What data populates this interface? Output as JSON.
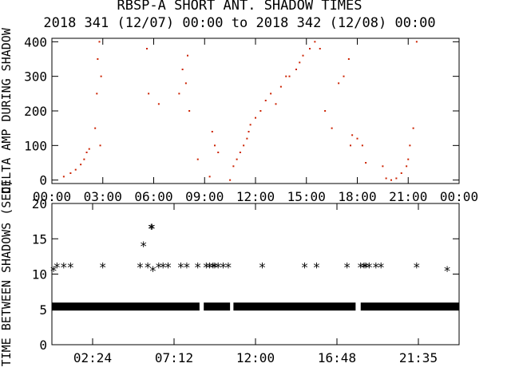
{
  "title": "RBSP-A SHORT ANT. SHADOW TIMES",
  "subtitle": "2018 341 (12/07) 00:00 to 2018 342 (12/08) 00:00",
  "colors": {
    "points": "#cc2200",
    "axes": "#000000",
    "stars": "#000000"
  },
  "chart_data": [
    {
      "type": "scatter",
      "ylabel": "DELTA AMP DURING SHADOW",
      "xlabel": "",
      "xlim": [
        0,
        24
      ],
      "ylim": [
        -10,
        410
      ],
      "yticks": [
        "0",
        "100",
        "200",
        "300",
        "400"
      ],
      "xticks": [
        "00:00",
        "03:00",
        "06:00",
        "09:00",
        "12:00",
        "15:00",
        "18:00",
        "21:00",
        "00:00"
      ],
      "marker": "dot",
      "series": [
        {
          "x": [
            0.7,
            1.1,
            1.4,
            1.7,
            1.9,
            2.05,
            2.2,
            2.55,
            2.65,
            2.7,
            2.8,
            2.85,
            2.9,
            5.6,
            5.7,
            6.3,
            7.5,
            7.7,
            7.9,
            8.0,
            8.1,
            8.6,
            9.3,
            9.45,
            9.6,
            9.8,
            10.5,
            10.7,
            10.9,
            11.1,
            11.3,
            11.5,
            11.6,
            11.7,
            12.0,
            12.3,
            12.6,
            12.9,
            13.2,
            13.5,
            13.8,
            14.0,
            14.4,
            14.6,
            14.8,
            15.2,
            15.5,
            15.8,
            16.1,
            16.5,
            16.9,
            17.2,
            17.5,
            17.6,
            17.7,
            18.0,
            18.3,
            18.5,
            19.5,
            19.7,
            20.0,
            20.3,
            20.6,
            20.9,
            21.0,
            21.1,
            21.3,
            21.5
          ],
          "y": [
            10,
            20,
            30,
            45,
            60,
            80,
            90,
            150,
            250,
            350,
            400,
            100,
            300,
            380,
            250,
            220,
            250,
            320,
            280,
            360,
            200,
            60,
            10,
            140,
            100,
            80,
            0,
            40,
            60,
            80,
            100,
            120,
            140,
            160,
            180,
            200,
            230,
            250,
            220,
            270,
            300,
            300,
            320,
            340,
            360,
            380,
            400,
            380,
            200,
            150,
            280,
            300,
            350,
            100,
            130,
            120,
            100,
            50,
            40,
            5,
            0,
            5,
            20,
            40,
            60,
            100,
            150,
            400
          ]
        }
      ]
    },
    {
      "type": "scatter",
      "ylabel": "TIME BETWEEN SHADOWS (SEC)",
      "xlabel": "",
      "xlim": [
        0,
        24
      ],
      "ylim": [
        0,
        20
      ],
      "yticks": [
        "0",
        "5",
        "10",
        "15",
        "20"
      ],
      "xticks": [
        "02:24",
        "07:12",
        "12:00",
        "16:48",
        "21:35"
      ],
      "marker": "asterisk",
      "baseline_band": {
        "value": 5.4,
        "gaps": [
          [
            8.7,
            8.95
          ],
          [
            10.5,
            10.7
          ],
          [
            17.9,
            18.2
          ]
        ]
      },
      "series": [
        {
          "x": [
            0.1,
            0.3,
            0.7,
            1.1,
            3.0,
            5.2,
            5.65,
            5.95,
            6.3,
            6.55,
            6.85,
            7.6,
            7.95,
            8.6,
            9.1,
            9.3,
            9.5,
            9.6,
            9.8,
            10.1,
            10.4,
            12.4,
            14.9,
            15.6,
            17.4,
            18.2,
            18.4,
            18.5,
            18.7,
            19.1,
            19.4,
            21.5,
            23.3,
            5.4,
            5.85,
            5.9
          ],
          "y": [
            10.5,
            11.0,
            11.0,
            11.0,
            11.0,
            11.0,
            11.0,
            10.5,
            11.0,
            11.0,
            11.0,
            11.0,
            11.0,
            11.0,
            11.0,
            11.0,
            11.0,
            11.0,
            11.0,
            11.0,
            11.0,
            11.0,
            11.0,
            11.0,
            11.0,
            11.0,
            11.0,
            11.0,
            11.0,
            11.0,
            11.0,
            11.0,
            10.5,
            14.0,
            16.5,
            16.5
          ]
        }
      ]
    }
  ]
}
